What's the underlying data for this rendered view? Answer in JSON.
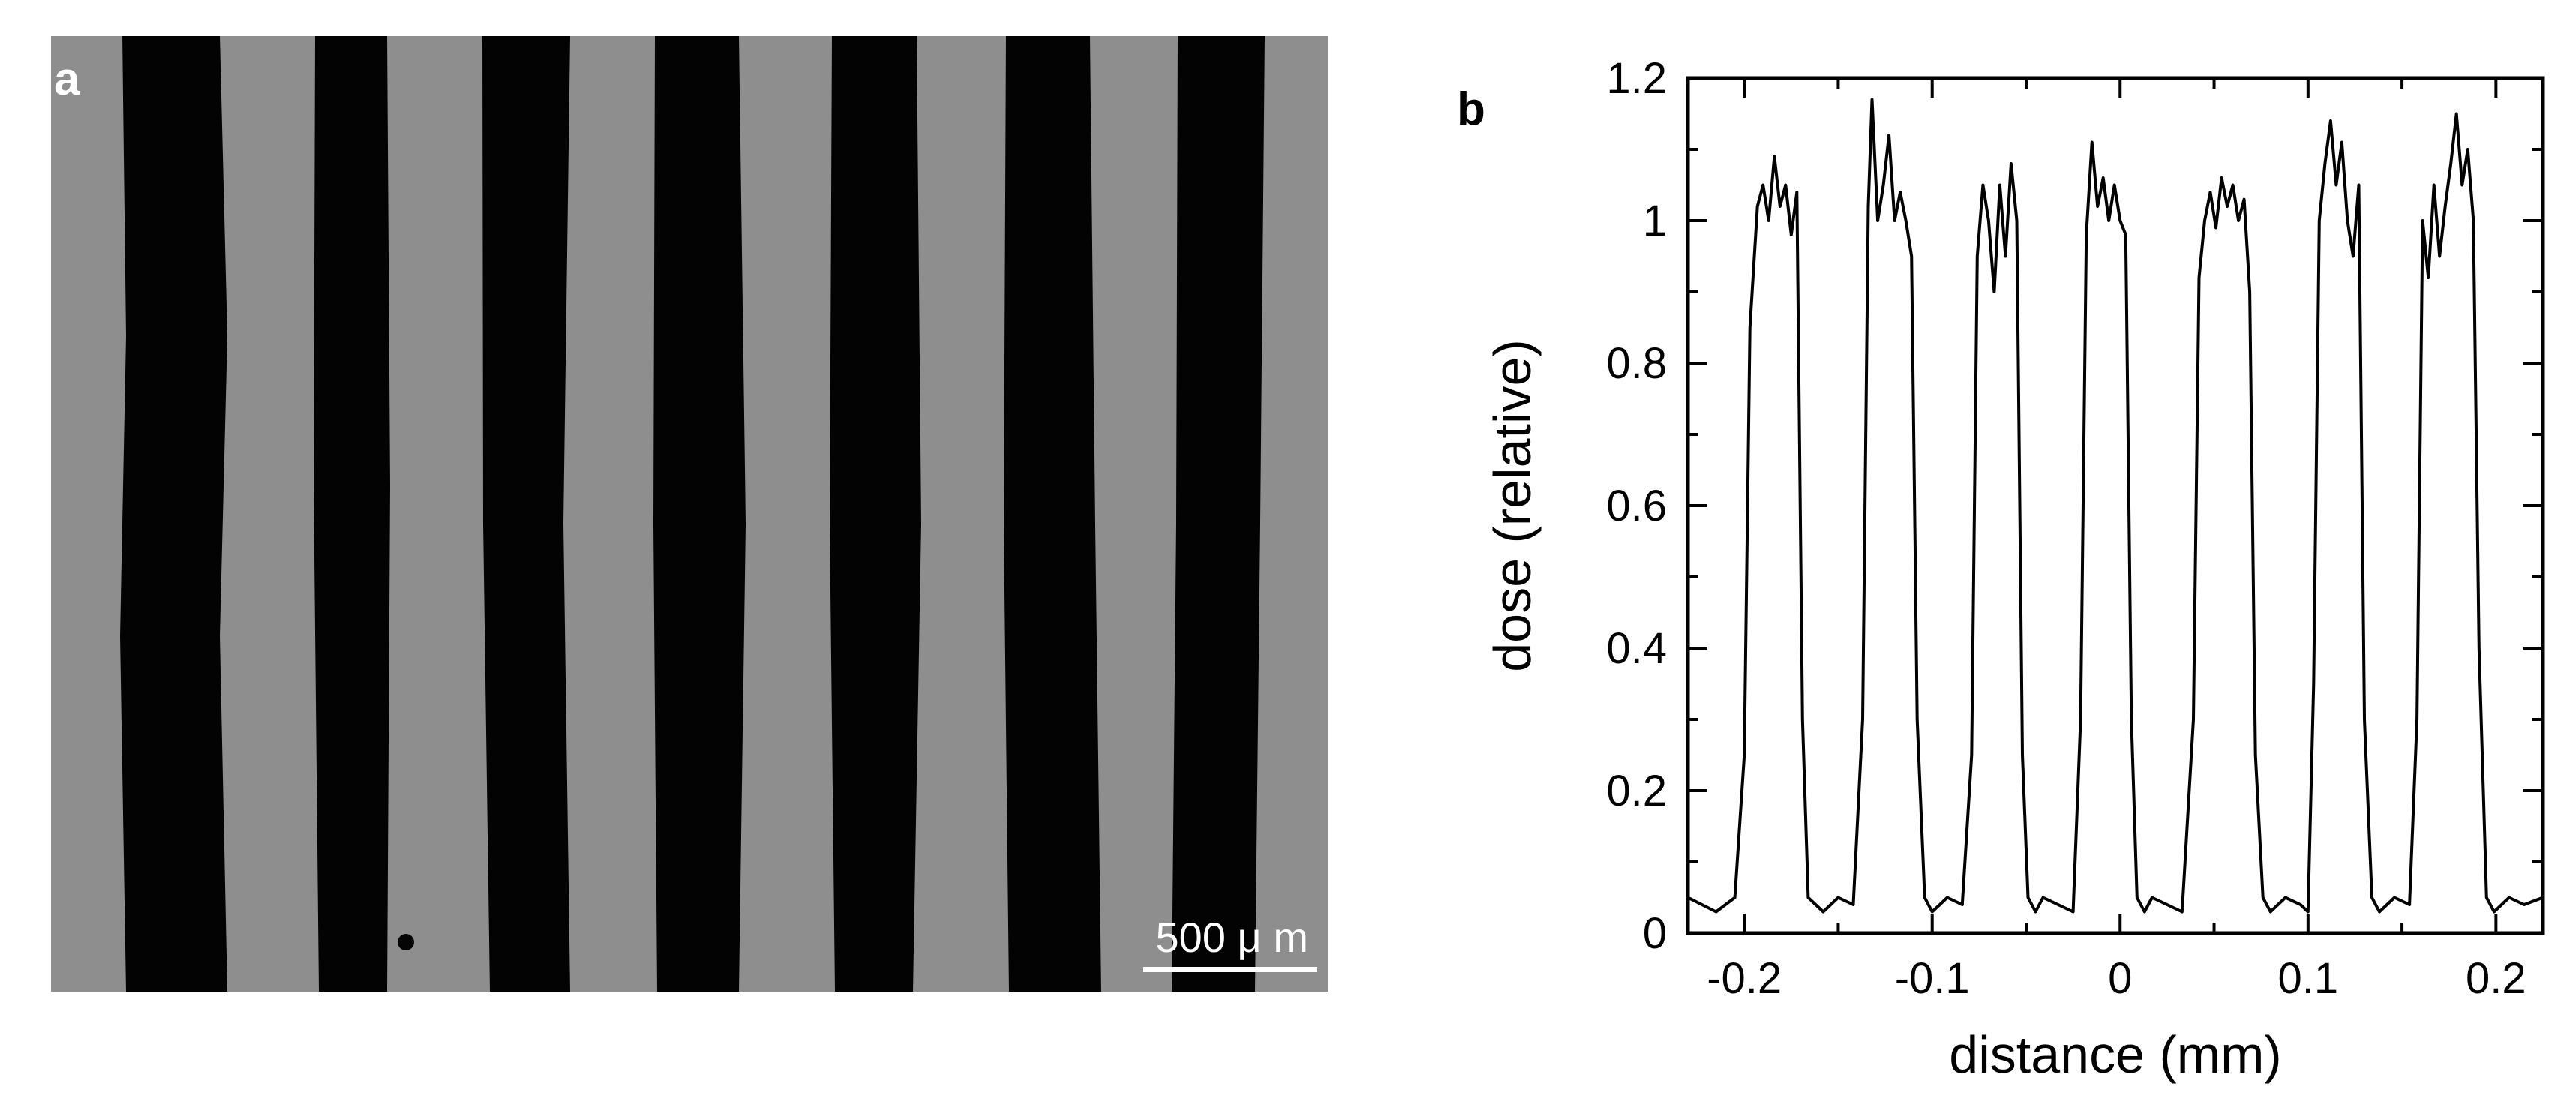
{
  "panel_a": {
    "label": "a",
    "scale_bar": "500 μ m"
  },
  "panel_b": {
    "label": "b"
  },
  "chart_data": {
    "type": "line",
    "title": "",
    "xlabel": "distance (mm)",
    "ylabel": "dose (relative)",
    "xlim": [
      -0.23,
      0.225
    ],
    "ylim": [
      0,
      1.2
    ],
    "xticks": [
      -0.2,
      -0.1,
      0,
      0.1,
      0.2
    ],
    "xtick_labels": [
      "-0.2",
      "-0.1",
      "0",
      "0.1",
      "0.2"
    ],
    "yticks": [
      0,
      0.2,
      0.4,
      0.6,
      0.8,
      1,
      1.2
    ],
    "ytick_labels": [
      "0",
      "0.2",
      "0.4",
      "0.6",
      "0.8",
      "1",
      "1.2"
    ],
    "grid": false,
    "legend": "none",
    "line_color": "#000000",
    "series": [
      {
        "x": [
          -0.23,
          -0.215,
          -0.205,
          -0.2,
          -0.197,
          -0.193,
          -0.19,
          -0.187,
          -0.184,
          -0.181,
          -0.178,
          -0.175,
          -0.172,
          -0.169,
          -0.166,
          -0.162,
          -0.158,
          -0.15,
          -0.142,
          -0.137,
          -0.134,
          -0.132,
          -0.129,
          -0.126,
          -0.123,
          -0.12,
          -0.117,
          -0.114,
          -0.111,
          -0.108,
          -0.104,
          -0.1,
          -0.092,
          -0.084,
          -0.079,
          -0.076,
          -0.073,
          -0.07,
          -0.067,
          -0.064,
          -0.061,
          -0.058,
          -0.055,
          -0.052,
          -0.049,
          -0.045,
          -0.041,
          -0.033,
          -0.025,
          -0.021,
          -0.018,
          -0.015,
          -0.012,
          -0.009,
          -0.006,
          -0.003,
          0.0,
          0.003,
          0.006,
          0.009,
          0.013,
          0.017,
          0.025,
          0.033,
          0.039,
          0.042,
          0.045,
          0.048,
          0.051,
          0.054,
          0.057,
          0.06,
          0.063,
          0.066,
          0.069,
          0.072,
          0.076,
          0.08,
          0.088,
          0.096,
          0.1,
          0.103,
          0.106,
          0.109,
          0.112,
          0.115,
          0.118,
          0.121,
          0.124,
          0.127,
          0.13,
          0.134,
          0.138,
          0.146,
          0.154,
          0.158,
          0.161,
          0.164,
          0.167,
          0.17,
          0.173,
          0.176,
          0.179,
          0.182,
          0.185,
          0.188,
          0.191,
          0.195,
          0.199,
          0.207,
          0.215,
          0.225
        ],
        "y": [
          0.05,
          0.03,
          0.05,
          0.25,
          0.85,
          1.02,
          1.05,
          1.0,
          1.09,
          1.02,
          1.05,
          0.98,
          1.04,
          0.3,
          0.05,
          0.04,
          0.03,
          0.05,
          0.04,
          0.3,
          1.02,
          1.17,
          1.0,
          1.05,
          1.12,
          1.0,
          1.04,
          1.0,
          0.95,
          0.3,
          0.05,
          0.03,
          0.05,
          0.04,
          0.25,
          0.95,
          1.05,
          1.0,
          0.9,
          1.05,
          0.95,
          1.08,
          1.0,
          0.25,
          0.05,
          0.03,
          0.05,
          0.04,
          0.03,
          0.3,
          0.98,
          1.11,
          1.02,
          1.06,
          1.0,
          1.05,
          1.0,
          0.98,
          0.3,
          0.05,
          0.03,
          0.05,
          0.04,
          0.03,
          0.3,
          0.92,
          1.0,
          1.04,
          0.99,
          1.06,
          1.02,
          1.05,
          1.0,
          1.03,
          0.9,
          0.25,
          0.05,
          0.03,
          0.05,
          0.04,
          0.03,
          0.35,
          1.0,
          1.08,
          1.14,
          1.05,
          1.11,
          1.0,
          0.95,
          1.05,
          0.3,
          0.05,
          0.03,
          0.05,
          0.04,
          0.3,
          1.0,
          0.92,
          1.05,
          0.95,
          1.02,
          1.08,
          1.15,
          1.05,
          1.1,
          1.0,
          0.4,
          0.05,
          0.03,
          0.05,
          0.04,
          0.05
        ]
      }
    ]
  }
}
